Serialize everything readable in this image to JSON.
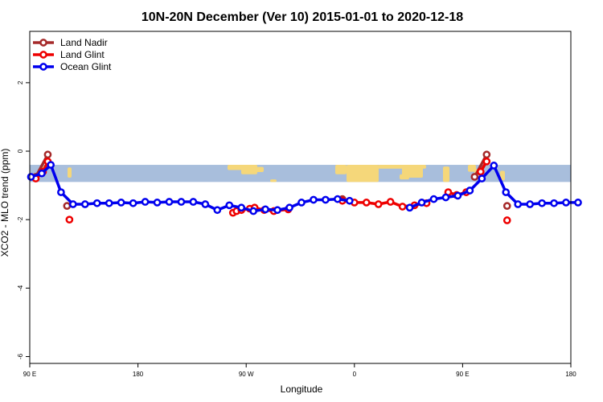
{
  "chart_data": {
    "type": "line",
    "title": "10N-20N December (Ver 10)   2015-01-01 to 2020-12-18",
    "xlabel": "Longitude",
    "ylabel": "XCO2 - MLO trend (ppm)",
    "xlim": [
      0,
      45
    ],
    "ylim": [
      -6.2,
      3.5
    ],
    "x_ticks": [
      {
        "pos": 0,
        "label": "90 E"
      },
      {
        "pos": 9,
        "label": "180"
      },
      {
        "pos": 18,
        "label": "90 W"
      },
      {
        "pos": 27,
        "label": "0"
      },
      {
        "pos": 36,
        "label": "90 E"
      },
      {
        "pos": 45,
        "label": "180"
      }
    ],
    "y_ticks": [
      -6,
      -4,
      -2,
      0,
      2
    ],
    "legend_position": "top-left",
    "map_band": {
      "ymin": -0.9,
      "ymax": -0.4,
      "ocean_color": "#a8bedc",
      "land_color": "#f5d77a"
    },
    "series": [
      {
        "name": "Land Nadir",
        "color": "#a52a2a",
        "segments": [
          [
            [
              0.5,
              -0.75
            ],
            [
              1.5,
              -0.1
            ]
          ],
          [
            [
              3.1,
              -1.6
            ]
          ],
          [
            [
              26.0,
              -1.4
            ]
          ],
          [
            [
              37.0,
              -0.75
            ],
            [
              38.0,
              -0.1
            ]
          ],
          [
            [
              39.7,
              -1.6
            ]
          ]
        ]
      },
      {
        "name": "Land Glint",
        "color": "#ee0000",
        "segments": [
          [
            [
              0.5,
              -0.8
            ],
            [
              1.1,
              -0.6
            ],
            [
              1.5,
              -0.3
            ]
          ],
          [
            [
              3.3,
              -2.0
            ]
          ],
          [
            [
              16.9,
              -1.8
            ],
            [
              17.2,
              -1.75
            ],
            [
              17.6,
              -1.72
            ],
            [
              18.3,
              -1.68
            ],
            [
              18.7,
              -1.65
            ],
            [
              19.5,
              -1.72
            ],
            [
              20.3,
              -1.75
            ],
            [
              21.5,
              -1.7
            ]
          ],
          [
            [
              26.0,
              -1.45
            ],
            [
              27.0,
              -1.5
            ],
            [
              28.0,
              -1.5
            ],
            [
              29.0,
              -1.55
            ],
            [
              30.0,
              -1.48
            ],
            [
              31.0,
              -1.62
            ],
            [
              32.0,
              -1.58
            ],
            [
              33.0,
              -1.52
            ]
          ],
          [
            [
              34.8,
              -1.2
            ],
            [
              35.5,
              -1.28
            ],
            [
              36.3,
              -1.2
            ]
          ],
          [
            [
              37.5,
              -0.6
            ],
            [
              38.0,
              -0.3
            ]
          ],
          [
            [
              39.7,
              -2.02
            ]
          ]
        ]
      },
      {
        "name": "Ocean Glint",
        "color": "#0000ee",
        "segments": [
          [
            [
              0.1,
              -0.75
            ],
            [
              1.0,
              -0.65
            ],
            [
              1.75,
              -0.4
            ],
            [
              2.6,
              -1.2
            ],
            [
              3.6,
              -1.55
            ],
            [
              4.6,
              -1.55
            ],
            [
              5.6,
              -1.52
            ],
            [
              6.6,
              -1.52
            ],
            [
              7.6,
              -1.5
            ],
            [
              8.6,
              -1.52
            ],
            [
              9.6,
              -1.48
            ],
            [
              10.6,
              -1.5
            ],
            [
              11.6,
              -1.48
            ],
            [
              12.6,
              -1.48
            ],
            [
              13.6,
              -1.48
            ],
            [
              14.6,
              -1.55
            ],
            [
              15.6,
              -1.72
            ],
            [
              16.6,
              -1.58
            ],
            [
              17.6,
              -1.65
            ],
            [
              18.6,
              -1.75
            ],
            [
              19.6,
              -1.7
            ],
            [
              20.6,
              -1.72
            ],
            [
              21.6,
              -1.65
            ],
            [
              22.6,
              -1.5
            ],
            [
              23.6,
              -1.42
            ],
            [
              24.6,
              -1.42
            ],
            [
              25.6,
              -1.4
            ],
            [
              26.6,
              -1.45
            ]
          ],
          [
            [
              31.6,
              -1.65
            ],
            [
              32.6,
              -1.5
            ],
            [
              33.6,
              -1.4
            ],
            [
              34.6,
              -1.35
            ],
            [
              35.6,
              -1.3
            ],
            [
              36.6,
              -1.15
            ],
            [
              37.6,
              -0.8
            ],
            [
              38.6,
              -0.42
            ],
            [
              39.6,
              -1.2
            ],
            [
              40.6,
              -1.55
            ],
            [
              41.6,
              -1.55
            ],
            [
              42.6,
              -1.52
            ],
            [
              43.6,
              -1.52
            ],
            [
              44.6,
              -1.5
            ],
            [
              45.6,
              -1.5
            ]
          ]
        ]
      }
    ]
  }
}
